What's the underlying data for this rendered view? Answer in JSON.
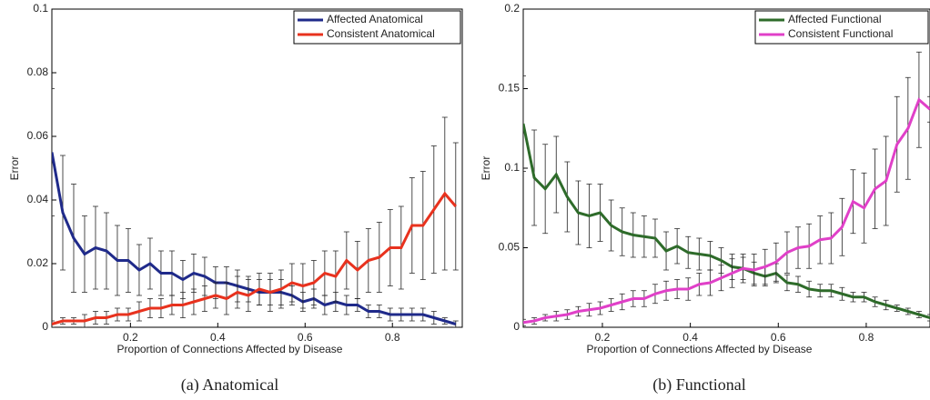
{
  "chart_data": [
    {
      "type": "line",
      "caption": "(a) Anatomical",
      "xlabel": "Proportion of Connections Affected by Disease",
      "ylabel": "Error",
      "x": [
        0.02,
        0.045,
        0.07,
        0.095,
        0.12,
        0.145,
        0.17,
        0.195,
        0.22,
        0.245,
        0.27,
        0.295,
        0.32,
        0.345,
        0.37,
        0.395,
        0.42,
        0.445,
        0.47,
        0.495,
        0.52,
        0.545,
        0.57,
        0.595,
        0.62,
        0.645,
        0.67,
        0.695,
        0.72,
        0.745,
        0.77,
        0.795,
        0.82,
        0.845,
        0.87,
        0.895,
        0.92,
        0.945
      ],
      "xlim": [
        0.02,
        0.96
      ],
      "xticks": [
        0.2,
        0.4,
        0.6,
        0.8
      ],
      "ylim": [
        0,
        0.1
      ],
      "yticks": [
        0,
        0.02,
        0.04,
        0.06,
        0.08,
        0.1
      ],
      "legend": "upper right",
      "series": [
        {
          "name": "Affected Anatomical",
          "color": "#1f2a8a",
          "values": [
            0.055,
            0.036,
            0.028,
            0.023,
            0.025,
            0.024,
            0.021,
            0.021,
            0.018,
            0.02,
            0.017,
            0.017,
            0.015,
            0.017,
            0.016,
            0.014,
            0.014,
            0.013,
            0.012,
            0.011,
            0.011,
            0.011,
            0.01,
            0.008,
            0.009,
            0.007,
            0.008,
            0.007,
            0.007,
            0.005,
            0.005,
            0.004,
            0.004,
            0.004,
            0.004,
            0.003,
            0.002,
            0.001
          ],
          "errors": [
            0.02,
            0.018,
            0.017,
            0.012,
            0.013,
            0.012,
            0.011,
            0.01,
            0.008,
            0.008,
            0.007,
            0.007,
            0.006,
            0.006,
            0.006,
            0.005,
            0.005,
            0.005,
            0.004,
            0.004,
            0.004,
            0.004,
            0.003,
            0.003,
            0.003,
            0.003,
            0.003,
            0.003,
            0.002,
            0.002,
            0.002,
            0.002,
            0.002,
            0.002,
            0.002,
            0.002,
            0.001,
            0.001
          ]
        },
        {
          "name": "Consistent Anatomical",
          "color": "#e8321e",
          "values": [
            0.001,
            0.002,
            0.002,
            0.002,
            0.003,
            0.003,
            0.004,
            0.004,
            0.005,
            0.006,
            0.006,
            0.007,
            0.007,
            0.008,
            0.009,
            0.01,
            0.009,
            0.011,
            0.01,
            0.012,
            0.011,
            0.012,
            0.014,
            0.013,
            0.014,
            0.017,
            0.016,
            0.021,
            0.018,
            0.021,
            0.022,
            0.025,
            0.025,
            0.032,
            0.032,
            0.037,
            0.042,
            0.038
          ],
          "errors": [
            0.001,
            0.001,
            0.001,
            0.002,
            0.002,
            0.002,
            0.002,
            0.002,
            0.003,
            0.003,
            0.003,
            0.003,
            0.004,
            0.004,
            0.004,
            0.004,
            0.005,
            0.005,
            0.005,
            0.005,
            0.006,
            0.006,
            0.006,
            0.007,
            0.007,
            0.007,
            0.008,
            0.009,
            0.009,
            0.01,
            0.011,
            0.012,
            0.013,
            0.015,
            0.017,
            0.02,
            0.024,
            0.02
          ]
        }
      ]
    },
    {
      "type": "line",
      "caption": "(b) Functional",
      "xlabel": "Proportion of Connections Affected by Disease",
      "ylabel": "Error",
      "x": [
        0.02,
        0.045,
        0.07,
        0.095,
        0.12,
        0.145,
        0.17,
        0.195,
        0.22,
        0.245,
        0.27,
        0.295,
        0.32,
        0.345,
        0.37,
        0.395,
        0.42,
        0.445,
        0.47,
        0.495,
        0.52,
        0.545,
        0.57,
        0.595,
        0.62,
        0.645,
        0.67,
        0.695,
        0.72,
        0.745,
        0.77,
        0.795,
        0.82,
        0.845,
        0.87,
        0.895,
        0.92,
        0.945
      ],
      "xlim": [
        0.02,
        0.945
      ],
      "xticks": [
        0.2,
        0.4,
        0.6,
        0.8
      ],
      "ylim": [
        0,
        0.2
      ],
      "yticks": [
        0,
        0.05,
        0.1,
        0.15,
        0.2
      ],
      "legend": "upper right",
      "series": [
        {
          "name": "Affected Functional",
          "color": "#2e6b2a",
          "values": [
            0.128,
            0.094,
            0.087,
            0.096,
            0.082,
            0.072,
            0.07,
            0.072,
            0.064,
            0.06,
            0.058,
            0.057,
            0.056,
            0.048,
            0.051,
            0.047,
            0.046,
            0.045,
            0.042,
            0.038,
            0.037,
            0.034,
            0.032,
            0.034,
            0.028,
            0.027,
            0.024,
            0.023,
            0.023,
            0.021,
            0.019,
            0.019,
            0.016,
            0.014,
            0.012,
            0.01,
            0.008,
            0.006
          ],
          "errors": [
            0.03,
            0.03,
            0.028,
            0.024,
            0.022,
            0.02,
            0.02,
            0.018,
            0.016,
            0.015,
            0.014,
            0.013,
            0.012,
            0.012,
            0.011,
            0.01,
            0.01,
            0.009,
            0.008,
            0.008,
            0.007,
            0.007,
            0.006,
            0.006,
            0.005,
            0.005,
            0.005,
            0.004,
            0.004,
            0.004,
            0.003,
            0.003,
            0.003,
            0.003,
            0.002,
            0.002,
            0.002,
            0.002
          ]
        },
        {
          "name": "Consistent Functional",
          "color": "#e040c8",
          "values": [
            0.003,
            0.004,
            0.006,
            0.007,
            0.008,
            0.01,
            0.011,
            0.012,
            0.014,
            0.016,
            0.018,
            0.018,
            0.021,
            0.023,
            0.024,
            0.024,
            0.027,
            0.028,
            0.031,
            0.034,
            0.037,
            0.036,
            0.038,
            0.041,
            0.047,
            0.05,
            0.051,
            0.055,
            0.056,
            0.063,
            0.079,
            0.075,
            0.087,
            0.092,
            0.115,
            0.125,
            0.143,
            0.137
          ],
          "errors": [
            0.002,
            0.002,
            0.002,
            0.003,
            0.003,
            0.003,
            0.004,
            0.004,
            0.004,
            0.005,
            0.005,
            0.005,
            0.006,
            0.006,
            0.006,
            0.007,
            0.007,
            0.008,
            0.008,
            0.009,
            0.009,
            0.01,
            0.011,
            0.012,
            0.013,
            0.013,
            0.014,
            0.015,
            0.016,
            0.018,
            0.02,
            0.022,
            0.025,
            0.028,
            0.03,
            0.032,
            0.03,
            0.008
          ]
        }
      ]
    }
  ]
}
